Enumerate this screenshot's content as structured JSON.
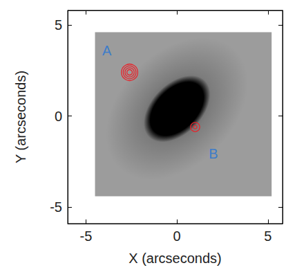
{
  "chart_data": {
    "type": "image",
    "xlabel": "X (arcseconds)",
    "ylabel": "Y (arcseconds)",
    "xlim": [
      -6,
      5.8
    ],
    "ylim": [
      -5.9,
      5.8
    ],
    "xticks": [
      -5,
      0,
      5
    ],
    "yticks": [
      -5,
      0,
      5
    ],
    "grid": false,
    "field": {
      "x": [
        -4.5,
        5.2
      ],
      "y": [
        -4.4,
        4.6
      ],
      "color": "#9c9c9c"
    },
    "galaxy": {
      "center": [
        0,
        0.4
      ],
      "semi_axes": [
        1.9,
        1.2
      ],
      "color": "#000000"
    },
    "contours": [
      {
        "center": [
          -2.6,
          2.4
        ],
        "radii": [
          0.45,
          0.35,
          0.25,
          0.15
        ],
        "color": "#e8232a"
      },
      {
        "center": [
          1.0,
          -0.6
        ],
        "radii": [
          0.25,
          0.1
        ],
        "color": "#e8232a"
      }
    ],
    "annotations": [
      {
        "text": "A",
        "x": -3.85,
        "y": 3.6,
        "color": "#3d7cc9"
      },
      {
        "text": "B",
        "x": 2.0,
        "y": -2.05,
        "color": "#3d7cc9"
      }
    ]
  }
}
